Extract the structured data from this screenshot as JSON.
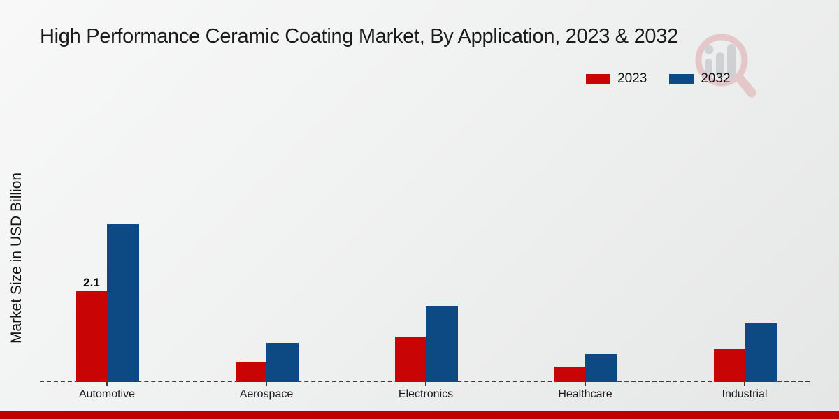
{
  "title": "High Performance Ceramic Coating Market, By Application, 2023 & 2032",
  "legend": {
    "items": [
      {
        "label": "2023",
        "color": "#c90404"
      },
      {
        "label": "2032",
        "color": "#0d4a83"
      }
    ]
  },
  "watermark_icon": "magnifier-bar-chart-logo",
  "footer_bar_color": "#c00000",
  "chart_data": {
    "type": "bar",
    "title": "High Performance Ceramic Coating Market, By Application, 2023 & 2032",
    "categories": [
      "Automotive",
      "Aerospace",
      "Electronics",
      "Healthcare",
      "Industrial"
    ],
    "series": [
      {
        "name": "2023",
        "color": "#c90404",
        "values": [
          2.1,
          0.45,
          1.05,
          0.35,
          0.75
        ],
        "bar_labels": [
          "2.1",
          null,
          null,
          null,
          null
        ]
      },
      {
        "name": "2032",
        "color": "#0d4a83",
        "values": [
          3.65,
          0.9,
          1.75,
          0.65,
          1.35
        ],
        "bar_labels": [
          null,
          null,
          null,
          null,
          null
        ]
      }
    ],
    "xlabel": "",
    "ylabel": "Market Size in USD Billion",
    "ylim": [
      0,
      4.5
    ],
    "grid": false,
    "legend_position": "top-right",
    "baseline_style": "dashed"
  }
}
